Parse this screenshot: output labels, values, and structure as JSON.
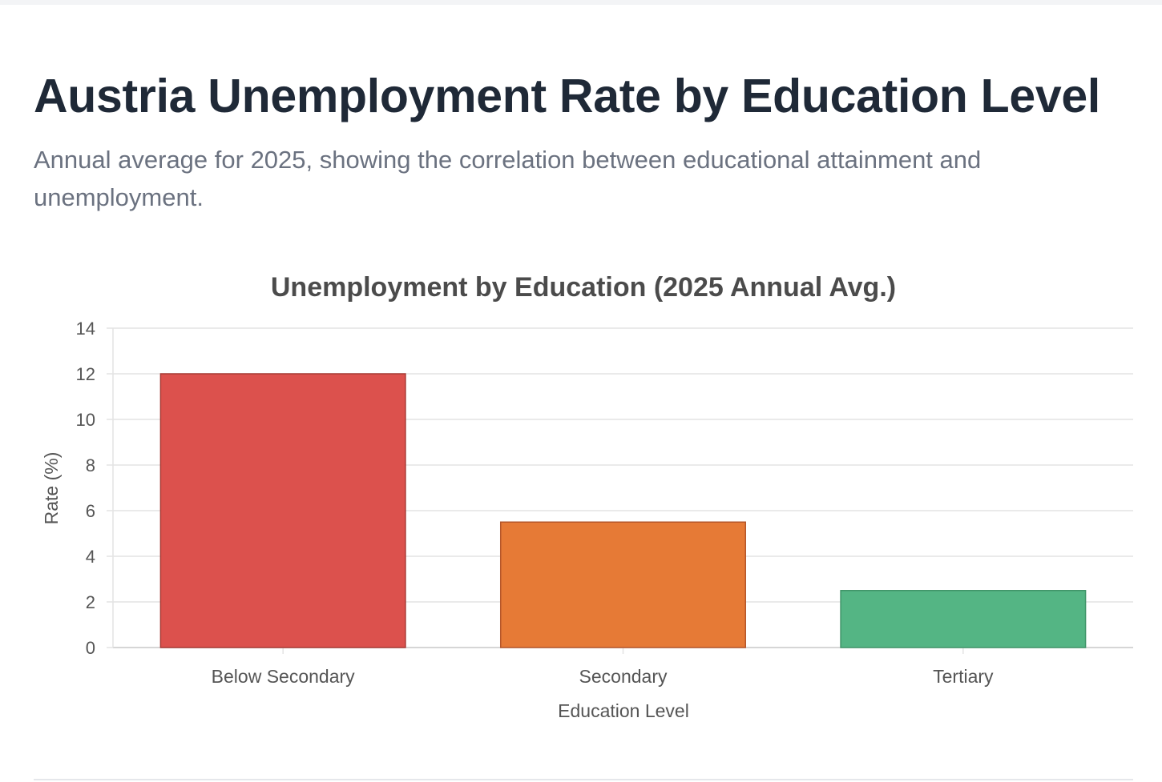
{
  "page": {
    "title": "Austria Unemployment Rate by Education Level",
    "subtitle": "Annual average for 2025, showing the correlation between educational attainment and unemployment."
  },
  "chart_data": {
    "type": "bar",
    "title": "Unemployment by Education (2025 Annual Avg.)",
    "xlabel": "Education Level",
    "ylabel": "Rate (%)",
    "categories": [
      "Below Secondary",
      "Secondary",
      "Tertiary"
    ],
    "values": [
      12.0,
      5.5,
      2.5
    ],
    "colors": [
      "#dc514d",
      "#e67a36",
      "#54b584"
    ],
    "border_colors": [
      "#a83a35",
      "#b5562a",
      "#3f9468"
    ],
    "ylim": [
      0,
      14
    ],
    "yticks": [
      "0",
      "2",
      "4",
      "6",
      "8",
      "10",
      "12",
      "14"
    ],
    "grid": true,
    "legend": "none"
  }
}
